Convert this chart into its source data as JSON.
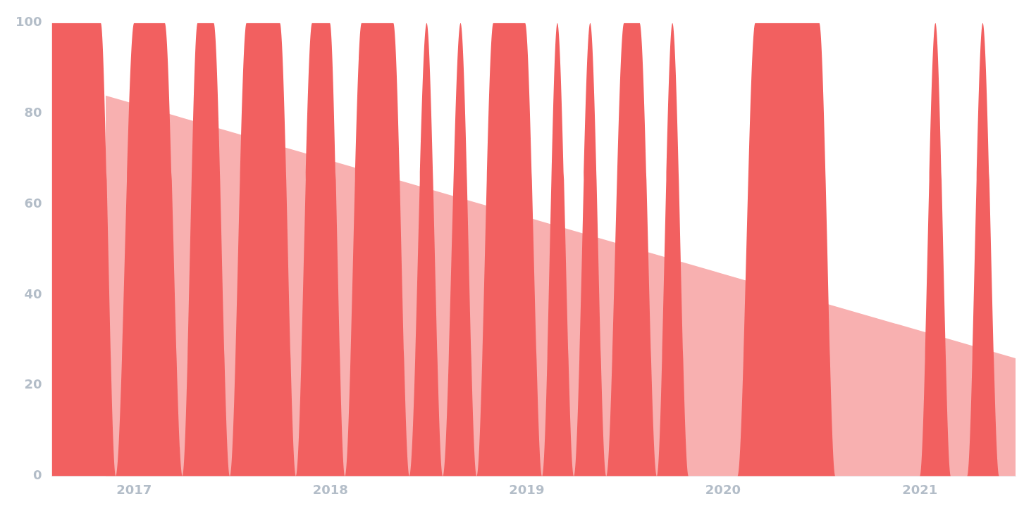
{
  "chart_data": {
    "type": "area",
    "xlim": [
      "2016-08-01",
      "2021-06-28"
    ],
    "xticks": [
      "2017",
      "2018",
      "2019",
      "2020",
      "2021"
    ],
    "ylim": [
      0,
      100
    ],
    "yticks": [
      0,
      20,
      40,
      60,
      80,
      100
    ],
    "grid": false,
    "legend": false,
    "series": [
      {
        "color": "#f26060",
        "x": [
          "2016-08-01",
          "2016-10-31",
          "2016-11-28",
          "2017-01-01",
          "2017-02-27",
          "2017-04-01",
          "2017-04-29",
          "2017-05-29",
          "2017-06-28",
          "2017-07-29",
          "2017-09-29",
          "2017-10-29",
          "2017-11-28",
          "2017-12-31",
          "2018-01-28",
          "2018-02-28",
          "2018-04-28",
          "2018-05-28",
          "2018-06-29",
          "2018-07-29",
          "2018-08-31",
          "2018-09-30",
          "2018-10-31",
          "2018-12-29",
          "2019-01-30",
          "2019-02-27",
          "2019-03-30",
          "2019-04-29",
          "2019-05-29",
          "2019-07-01",
          "2019-07-30",
          "2019-08-31",
          "2019-09-29",
          "2019-10-29",
          "2020-01-28",
          "2020-03-01",
          "2020-06-28",
          "2020-07-28",
          "2021-01-01",
          "2021-01-30",
          "2021-02-28",
          "2021-03-30",
          "2021-04-28",
          "2021-05-29",
          "2021-06-28"
        ],
        "values": [
          100,
          100,
          0,
          100,
          100,
          0,
          100,
          100,
          0,
          100,
          100,
          0,
          100,
          100,
          0,
          100,
          100,
          0,
          100,
          0,
          100,
          0,
          100,
          100,
          0,
          100,
          0,
          100,
          0,
          100,
          100,
          0,
          100,
          0,
          0,
          100,
          100,
          0,
          0,
          100,
          0,
          0,
          100,
          0,
          0
        ]
      },
      {
        "color": "#f8b0b0",
        "x": [
          "2016-11-09",
          "2021-06-28"
        ],
        "values": [
          84,
          26
        ]
      }
    ]
  }
}
